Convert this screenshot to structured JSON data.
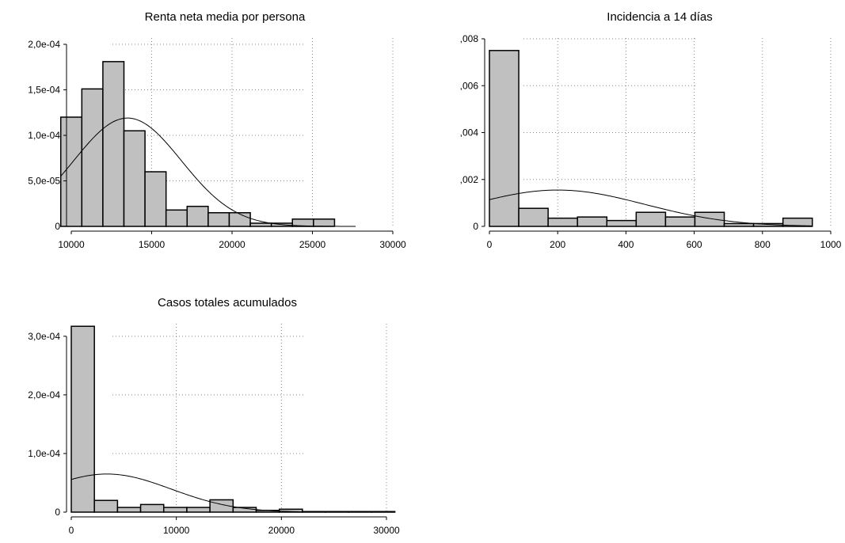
{
  "chart_data": [
    {
      "type": "bar",
      "title": "Renta neta media por persona",
      "xlim": [
        10000,
        30000
      ],
      "ylim": [
        0,
        0.0002
      ],
      "xticks": [
        {
          "value": 10000,
          "label": "10000"
        },
        {
          "value": 15000,
          "label": "15000"
        },
        {
          "value": 20000,
          "label": "20000"
        },
        {
          "value": 25000,
          "label": "25000"
        },
        {
          "value": 30000,
          "label": "30000"
        }
      ],
      "yticks": [
        {
          "value": 0,
          "label": "0"
        },
        {
          "value": 5e-05,
          "label": "5,0e-05"
        },
        {
          "value": 0.0001,
          "label": "1,0e-04"
        },
        {
          "value": 0.00015,
          "label": "1,5e-04"
        },
        {
          "value": 0.0002,
          "label": "2,0e-04"
        }
      ],
      "bin_width": 1310,
      "bin_edges": [
        9346,
        10656,
        11966,
        13276,
        14586,
        15896,
        17206,
        18516,
        19826,
        21136,
        22446,
        23756,
        25066,
        26376,
        27686
      ],
      "values": [
        0.00012,
        0.000151,
        0.000181,
        0.000105,
        6e-05,
        1.8e-05,
        2.2e-05,
        1.5e-05,
        1.5e-05,
        3.5e-06,
        3.5e-06,
        8e-06,
        8e-06,
        0
      ],
      "density_curve": {
        "mean": 13500,
        "sd": 3350,
        "peak": 0.000119
      },
      "grid": true,
      "legend": "none"
    },
    {
      "type": "bar",
      "title": "Incidencia a 14 días",
      "xlim": [
        0,
        1000
      ],
      "ylim": [
        0,
        0.008
      ],
      "xticks": [
        {
          "value": 0,
          "label": "0"
        },
        {
          "value": 200,
          "label": "200"
        },
        {
          "value": 400,
          "label": "400"
        },
        {
          "value": 600,
          "label": "600"
        },
        {
          "value": 800,
          "label": "800"
        },
        {
          "value": 1000,
          "label": "1000"
        }
      ],
      "yticks": [
        {
          "value": 0,
          "label": "0"
        },
        {
          "value": 0.002,
          "label": ",002"
        },
        {
          "value": 0.004,
          "label": ",004"
        },
        {
          "value": 0.006,
          "label": ",006"
        },
        {
          "value": 0.008,
          "label": ",008"
        }
      ],
      "bin_width": 86,
      "bin_edges": [
        0,
        86,
        172,
        258,
        344,
        430,
        516,
        602,
        688,
        774,
        860,
        946
      ],
      "values": [
        0.0075,
        0.00077,
        0.00035,
        0.0004,
        0.00025,
        0.0006,
        0.0004,
        0.0006,
        0.00012,
        0.00012,
        0.00035
      ],
      "density_curve": {
        "mean": 200,
        "sd": 255,
        "peak": 0.00155
      },
      "grid": true,
      "legend": "none"
    },
    {
      "type": "bar",
      "title": "Casos totales acumulados",
      "xlim": [
        0,
        30000
      ],
      "ylim": [
        0,
        0.00032
      ],
      "xticks": [
        {
          "value": 0,
          "label": "0"
        },
        {
          "value": 10000,
          "label": "10000"
        },
        {
          "value": 20000,
          "label": "20000"
        },
        {
          "value": 30000,
          "label": "30000"
        }
      ],
      "yticks": [
        {
          "value": 0,
          "label": "0"
        },
        {
          "value": 0.0001,
          "label": "1,0e-04"
        },
        {
          "value": 0.0002,
          "label": "2,0e-04"
        },
        {
          "value": 0.0003,
          "label": "3,0e-04"
        }
      ],
      "bin_width": 2200,
      "bin_edges": [
        0,
        2200,
        4400,
        6600,
        8800,
        11000,
        13200,
        15400,
        17600,
        19800,
        22000,
        24200,
        26400,
        28600,
        30800
      ],
      "values": [
        0.000317,
        2e-05,
        8e-06,
        1.3e-05,
        8e-06,
        8e-06,
        2.1e-05,
        8e-06,
        3e-06,
        5e-06,
        1e-06,
        1e-06,
        1e-06,
        1e-06
      ],
      "density_curve": {
        "mean": 3400,
        "sd": 6100,
        "peak": 6.5e-05
      },
      "grid": true,
      "legend": "none"
    }
  ],
  "style": {
    "bar_fill": "#c0c0c0",
    "bar_stroke": "#000000",
    "gridline_color": "#888888",
    "background": "#ffffff"
  }
}
